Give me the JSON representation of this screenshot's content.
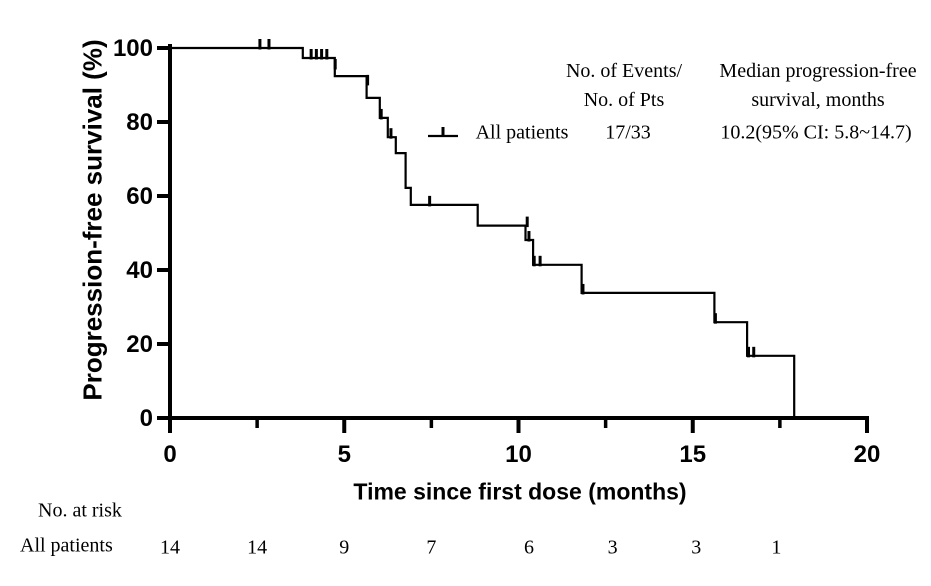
{
  "figure": {
    "ylabel": "Progression-free survival (%)",
    "xlabel": "Time since first dose (months)"
  },
  "legend": {
    "events_header_line1": "No. of Events/",
    "events_header_line2": "No. of Pts",
    "median_header_line1": "Median progression-free",
    "median_header_line2": "survival, months",
    "series_label": "All patients",
    "events_value": "17/33",
    "median_value": "10.2(95% CI: 5.8~14.7)"
  },
  "at_risk": {
    "header": "No. at risk",
    "row_label": "All patients"
  },
  "chart_data": {
    "type": "line",
    "subtype": "kaplan-meier-step-curve",
    "title": "",
    "xlabel": "Time since first dose (months)",
    "ylabel": "Progression-free survival (%)",
    "xlim": [
      0,
      20
    ],
    "ylim": [
      0,
      100
    ],
    "x_major_ticks": [
      0,
      5,
      10,
      15,
      20
    ],
    "x_minor_ticks": [
      2.5,
      7.5,
      12.5,
      17.5
    ],
    "y_major_ticks": [
      0,
      20,
      40,
      60,
      80,
      100
    ],
    "grid": false,
    "legend_position": "upper-right-inside",
    "colors": {
      "line": "#000000",
      "axis": "#000000",
      "background": "#ffffff"
    },
    "series": [
      {
        "name": "All patients",
        "n_events_over_n_pts": "17/33",
        "median_months": 10.2,
        "median_ci_95": [
          5.8,
          14.7
        ],
        "step_points": [
          [
            0,
            100
          ],
          [
            3.81,
            100
          ],
          [
            3.81,
            97.3
          ],
          [
            4.73,
            97.3
          ],
          [
            4.73,
            92.4
          ],
          [
            5.64,
            92.4
          ],
          [
            5.64,
            86.5
          ],
          [
            6.02,
            86.5
          ],
          [
            6.02,
            81.1
          ],
          [
            6.25,
            81.1
          ],
          [
            6.25,
            75.9
          ],
          [
            6.48,
            75.9
          ],
          [
            6.48,
            71.6
          ],
          [
            6.76,
            71.6
          ],
          [
            6.76,
            62.2
          ],
          [
            6.91,
            62.2
          ],
          [
            6.91,
            57.6
          ],
          [
            8.83,
            57.6
          ],
          [
            8.83,
            52.0
          ],
          [
            10.2,
            52.0
          ],
          [
            10.2,
            48.1
          ],
          [
            10.42,
            48.1
          ],
          [
            10.42,
            41.4
          ],
          [
            11.81,
            41.4
          ],
          [
            11.81,
            33.8
          ],
          [
            15.62,
            33.8
          ],
          [
            15.62,
            25.9
          ],
          [
            16.56,
            25.9
          ],
          [
            16.56,
            16.8
          ],
          [
            17.91,
            16.8
          ],
          [
            17.91,
            0
          ]
        ],
        "censor_marks": [
          [
            2.58,
            100
          ],
          [
            2.84,
            100
          ],
          [
            4.05,
            97.3
          ],
          [
            4.2,
            97.3
          ],
          [
            4.35,
            97.3
          ],
          [
            4.5,
            97.3
          ],
          [
            4.74,
            94.6
          ],
          [
            5.67,
            90.3
          ],
          [
            6.06,
            81.1
          ],
          [
            6.34,
            75.9
          ],
          [
            7.45,
            57.6
          ],
          [
            10.25,
            52.0
          ],
          [
            10.3,
            48.1
          ],
          [
            10.45,
            41.4
          ],
          [
            10.62,
            41.4
          ],
          [
            11.85,
            33.8
          ],
          [
            15.65,
            25.9
          ],
          [
            16.6,
            16.8
          ],
          [
            16.75,
            16.8
          ]
        ]
      }
    ],
    "at_risk": {
      "header": "No. at risk",
      "row_label": "All patients",
      "times": [
        0,
        2.5,
        5,
        7.5,
        10.3,
        12.7,
        15.1,
        17.4
      ],
      "values": [
        14,
        14,
        9,
        7,
        6,
        3,
        3,
        1
      ]
    }
  }
}
